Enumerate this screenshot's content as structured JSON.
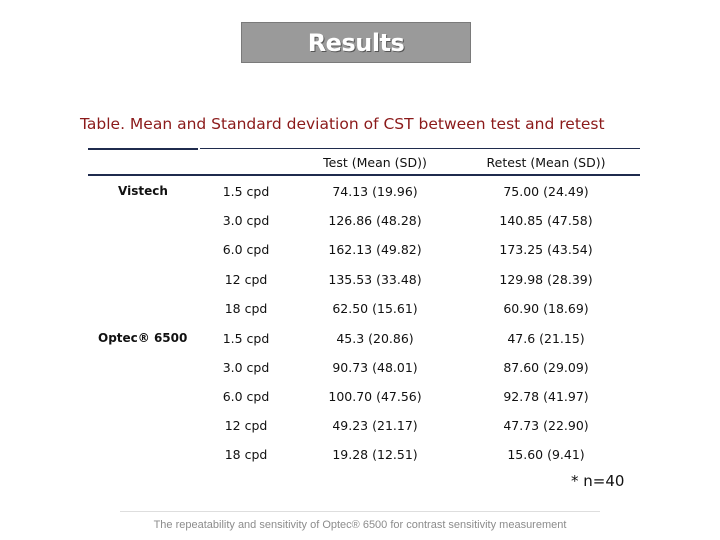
{
  "header": {
    "title": "Results"
  },
  "table": {
    "caption": "Table. Mean and Standard deviation of CST between test and retest",
    "columns": [
      "Test (Mean (SD))",
      "Retest (Mean (SD))"
    ],
    "groups": [
      {
        "name": "Vistech",
        "rows": [
          {
            "freq": "1.5 cpd",
            "test": "74.13 (19.96)",
            "retest": "75.00 (24.49)"
          },
          {
            "freq": "3.0 cpd",
            "test": "126.86 (48.28)",
            "retest": "140.85 (47.58)"
          },
          {
            "freq": "6.0 cpd",
            "test": "162.13 (49.82)",
            "retest": "173.25 (43.54)"
          },
          {
            "freq": "12 cpd",
            "test": "135.53 (33.48)",
            "retest": "129.98 (28.39)"
          },
          {
            "freq": "18 cpd",
            "test": "62.50 (15.61)",
            "retest": "60.90 (18.69)"
          }
        ]
      },
      {
        "name": "Optec® 6500",
        "rows": [
          {
            "freq": "1.5 cpd",
            "test": "45.3 (20.86)",
            "retest": "47.6 (21.15)"
          },
          {
            "freq": "3.0 cpd",
            "test": "90.73 (48.01)",
            "retest": "87.60 (29.09)"
          },
          {
            "freq": "6.0 cpd",
            "test": "100.70 (47.56)",
            "retest": "92.78 (41.97)"
          },
          {
            "freq": "12 cpd",
            "test": "49.23 (21.17)",
            "retest": "47.73 (22.90)"
          },
          {
            "freq": "18 cpd",
            "test": "19.28 (12.51)",
            "retest": "15.60 (9.41)"
          }
        ]
      }
    ],
    "note": "* n=40"
  },
  "footer": {
    "text": "The repeatability and sensitivity of Optec® 6500 for contrast sensitivity measurement"
  }
}
